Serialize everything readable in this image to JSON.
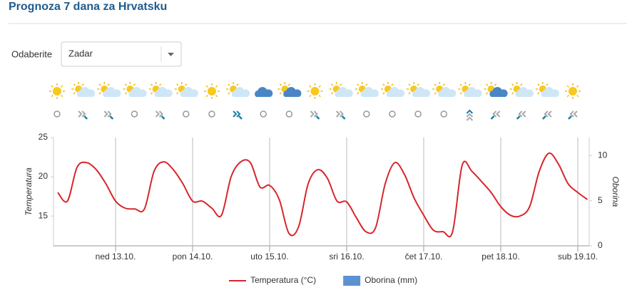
{
  "header": {
    "title": "Prognoza 7 dana za Hrvatsku"
  },
  "selector": {
    "label": "Odaberite",
    "value": "Zadar"
  },
  "chart_data": {
    "type": "line",
    "categories": [
      null,
      null,
      null,
      null,
      null,
      null,
      "ned 13.10.",
      null,
      null,
      null,
      null,
      null,
      null,
      null,
      "pon 14.10.",
      null,
      null,
      null,
      null,
      null,
      null,
      null,
      "uto 15.10.",
      null,
      null,
      null,
      null,
      null,
      null,
      null,
      "sri 16.10.",
      null,
      null,
      null,
      null,
      null,
      null,
      null,
      "čet 17.10.",
      null,
      null,
      null,
      null,
      null,
      null,
      null,
      "pet 18.10.",
      null,
      null,
      null,
      null,
      null,
      null,
      null,
      "sub 19.10.",
      null
    ],
    "series": [
      {
        "name": "Temperatura (°C)",
        "color": "#d7262b",
        "values": [
          18.0,
          16.9,
          21.2,
          21.8,
          20.9,
          19.1,
          16.9,
          16.0,
          15.9,
          15.9,
          20.7,
          21.9,
          20.9,
          19.1,
          16.9,
          16.9,
          16.0,
          15.1,
          20.0,
          21.9,
          21.8,
          18.7,
          18.9,
          17.1,
          12.8,
          13.6,
          19.1,
          20.9,
          19.8,
          16.9,
          16.8,
          14.8,
          13.0,
          13.5,
          19.1,
          21.8,
          20.3,
          17.3,
          15.1,
          13.2,
          13.0,
          13.0,
          21.5,
          20.7,
          19.4,
          18.0,
          16.2,
          15.1,
          15.0,
          16.2,
          20.7,
          23.0,
          21.6,
          19.1,
          18.0,
          17.1
        ]
      },
      {
        "name": "Oborina (mm)",
        "color": "#5b92d1",
        "type": "bar",
        "axis": "y2",
        "values": [
          0,
          0,
          0,
          0,
          0,
          0,
          0,
          0,
          0,
          0,
          0,
          0,
          0,
          0,
          0,
          0,
          0,
          0,
          0,
          0,
          0,
          0,
          0,
          0,
          0,
          0,
          0,
          0,
          0,
          0,
          0,
          0,
          0,
          0,
          0,
          0,
          0,
          0,
          0,
          0,
          0,
          0,
          0,
          0,
          0,
          0,
          0,
          0,
          0,
          0,
          0,
          0,
          0,
          0,
          0,
          0
        ]
      }
    ],
    "y_label": "Temperatura",
    "y2_label": "Oborina",
    "ylim": [
      11.2,
      25
    ],
    "yticks": [
      15,
      20,
      25
    ],
    "y2lim": [
      0,
      12
    ],
    "y2ticks": [
      0,
      5,
      10
    ],
    "grid_x": true
  }
}
